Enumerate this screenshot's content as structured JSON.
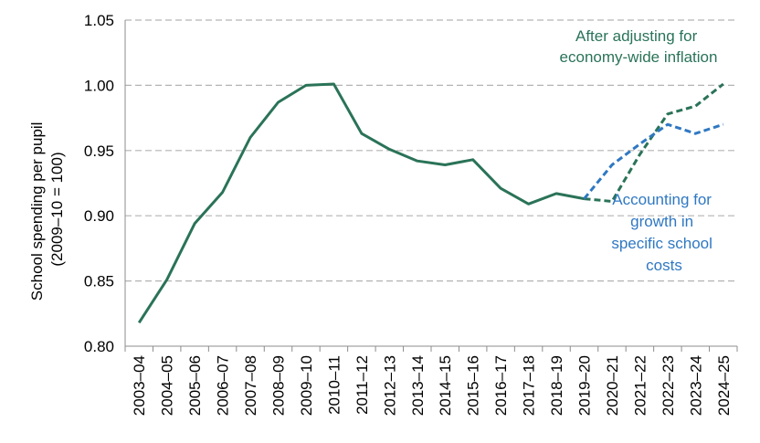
{
  "chart_data": {
    "type": "line",
    "title": "",
    "xlabel": "",
    "ylabel_lines": [
      "School spending per pupil",
      "(2009–10 = 100)"
    ],
    "ylim": [
      0.8,
      1.05
    ],
    "yticks": [
      "0.80",
      "0.85",
      "0.90",
      "0.95",
      "1.00",
      "1.05"
    ],
    "categories": [
      "2003–04",
      "2004–05",
      "2005–06",
      "2006–07",
      "2007–08",
      "2008–09",
      "2009–10",
      "2010–11",
      "2011–12",
      "2012–13",
      "2013–14",
      "2014–15",
      "2015–16",
      "2016–17",
      "2017–18",
      "2018–19",
      "2019–20",
      "2020–21",
      "2021–22",
      "2022–23",
      "2023–24",
      "2024–25"
    ],
    "grid": "horizontal dashed",
    "series": [
      {
        "style": "solid",
        "color": "#2a7358",
        "values": [
          0.818,
          0.851,
          0.894,
          0.918,
          0.96,
          0.987,
          1.0,
          1.001,
          0.963,
          0.951,
          0.942,
          0.939,
          0.943,
          0.921,
          0.909,
          0.917,
          0.913,
          null,
          null,
          null,
          null,
          null
        ]
      },
      {
        "style": "dashed",
        "color": "#2a7358",
        "values": [
          null,
          null,
          null,
          null,
          null,
          null,
          null,
          null,
          null,
          null,
          null,
          null,
          null,
          null,
          null,
          null,
          0.913,
          0.911,
          0.947,
          0.978,
          0.984,
          1.001
        ]
      },
      {
        "style": "dashed",
        "color": "#2f78c2",
        "values": [
          null,
          null,
          null,
          null,
          null,
          null,
          null,
          null,
          null,
          null,
          null,
          null,
          null,
          null,
          null,
          null,
          0.913,
          0.939,
          0.955,
          0.97,
          0.963,
          0.97
        ]
      }
    ],
    "annotations": [
      {
        "lines": [
          "After adjusting for",
          "economy-wide inflation"
        ],
        "color": "#2a7358"
      },
      {
        "lines": [
          "Accounting for",
          "growth in",
          "specific school",
          "costs"
        ],
        "color": "#2f78c2"
      }
    ]
  }
}
